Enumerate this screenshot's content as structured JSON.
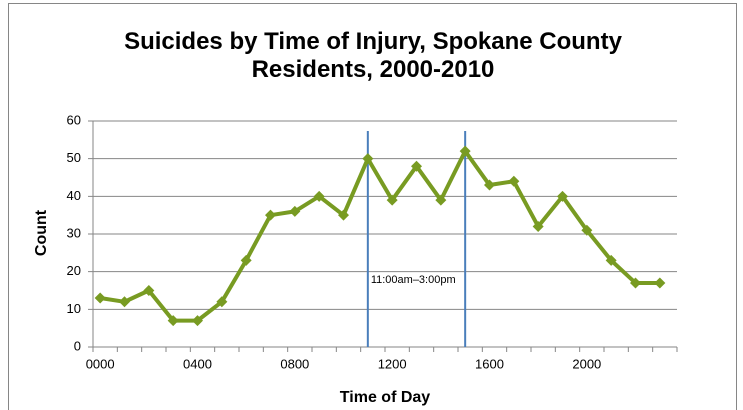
{
  "chart_data": {
    "type": "line",
    "title": "Suicides by Time of Injury, Spokane County Residents, 2000-2010",
    "x_label": "Time of Day",
    "y_label": "Count",
    "categories": [
      "0000",
      null,
      null,
      null,
      "0400",
      null,
      null,
      null,
      "0800",
      null,
      null,
      null,
      "1200",
      null,
      null,
      null,
      "1600",
      null,
      null,
      null,
      "2000",
      null,
      null,
      null
    ],
    "series": [
      {
        "name": "Count",
        "color": "#789b22",
        "values": [
          13,
          12,
          15,
          7,
          7,
          12,
          23,
          35,
          36,
          40,
          35,
          50,
          39,
          48,
          39,
          52,
          43,
          44,
          32,
          40,
          31,
          23,
          17,
          17
        ]
      }
    ],
    "ylim": [
      0,
      60
    ],
    "yticks": [
      0,
      10,
      20,
      30,
      40,
      50,
      60
    ],
    "grid": true,
    "annotation": {
      "text": "11:00am–3:00pm",
      "range": [
        11,
        15
      ],
      "color": "#4a7ebb"
    }
  }
}
